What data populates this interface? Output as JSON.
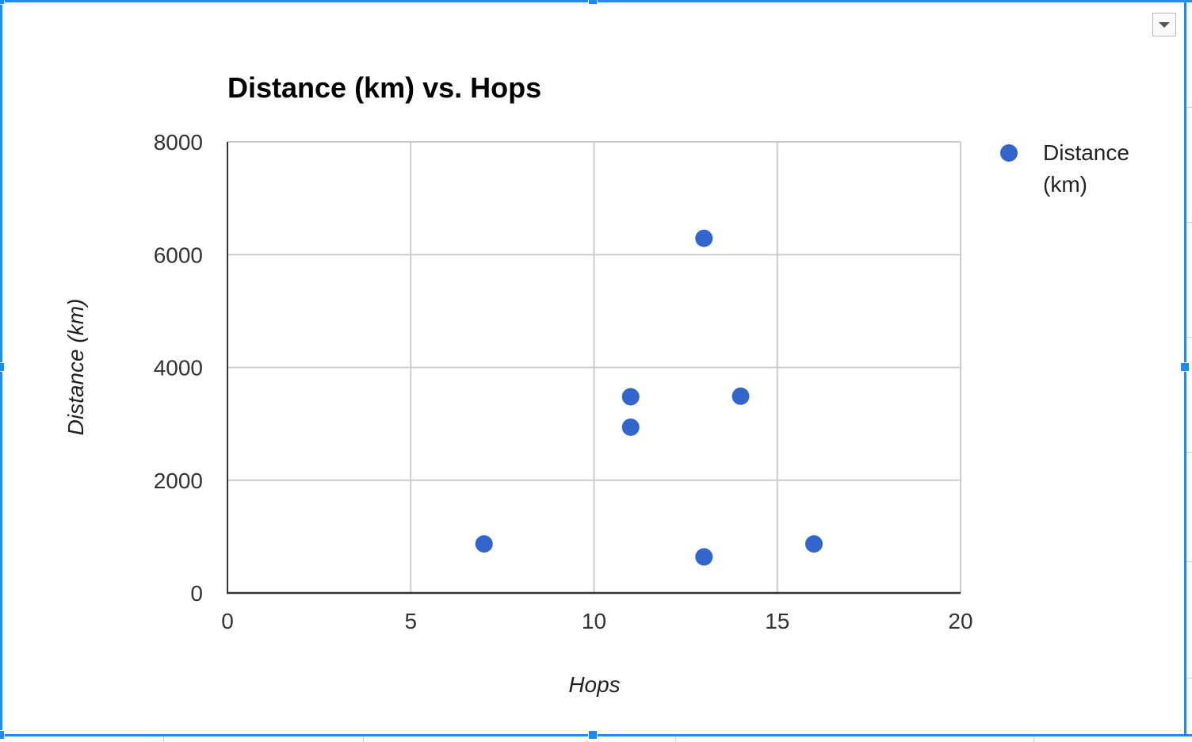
{
  "chart_data": {
    "type": "scatter",
    "title": "Distance (km) vs. Hops",
    "xlabel": "Hops",
    "ylabel": "Distance (km)",
    "xlim": [
      0,
      20
    ],
    "ylim": [
      0,
      8000
    ],
    "xticks": [
      0,
      5,
      10,
      15,
      20
    ],
    "yticks": [
      0,
      2000,
      4000,
      6000,
      8000
    ],
    "grid": true,
    "legend_position": "right",
    "series": [
      {
        "name": "Distance (km)",
        "color": "#3366cc",
        "points": [
          {
            "x": 7,
            "y": 870
          },
          {
            "x": 11,
            "y": 3480
          },
          {
            "x": 11,
            "y": 2940
          },
          {
            "x": 13,
            "y": 6290
          },
          {
            "x": 13,
            "y": 640
          },
          {
            "x": 14,
            "y": 3490
          },
          {
            "x": 16,
            "y": 870
          }
        ]
      }
    ]
  },
  "chart_menu": {
    "icon": "chevron-down-icon"
  },
  "colors": {
    "selection": "#1a8cff",
    "gridline": "#cccccc",
    "axis": "#333333",
    "text": "#222222"
  }
}
